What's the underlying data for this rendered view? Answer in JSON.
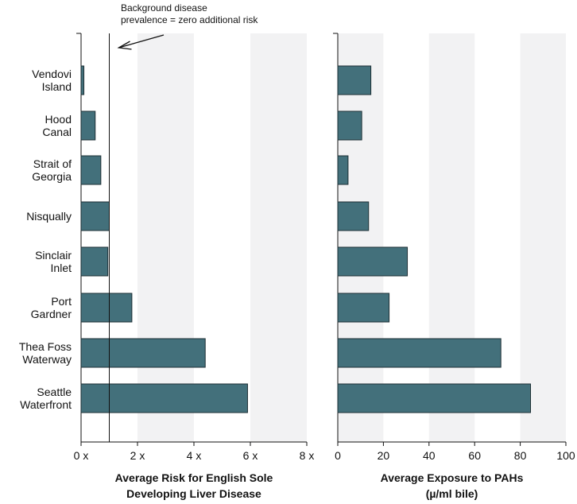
{
  "chart_data": [
    {
      "type": "bar",
      "orientation": "horizontal",
      "categories": [
        "Vendovi\nIsland",
        "Hood\nCanal",
        "Strait of\nGeorgia",
        "Nisqually",
        "Sinclair\nInlet",
        "Port\nGardner",
        "Thea Foss\nWaterway",
        "Seattle\nWaterfront"
      ],
      "values": [
        0.1,
        0.5,
        0.7,
        1.0,
        0.95,
        1.8,
        4.4,
        5.9
      ],
      "xlabel": "Average Risk for English Sole\nDeveloping Liver Disease",
      "ticks": [
        "0 x",
        "2 x",
        "4 x",
        "6 x",
        "8 x"
      ],
      "xlim": [
        0,
        8
      ],
      "reference_line": {
        "value": 1,
        "annotation": "Background disease\nprevalence = zero additional risk"
      },
      "shaded_bands": [
        [
          2,
          4
        ],
        [
          6,
          8
        ]
      ],
      "bar_color": "#43707b",
      "band_color": "#f2f2f3"
    },
    {
      "type": "bar",
      "orientation": "horizontal",
      "categories": [
        "Vendovi\nIsland",
        "Hood\nCanal",
        "Strait of\nGeorgia",
        "Nisqually",
        "Sinclair\nInlet",
        "Port\nGardner",
        "Thea Foss\nWaterway",
        "Seattle\nWaterfront"
      ],
      "values": [
        14.5,
        10.5,
        4.5,
        13.5,
        30.5,
        22.5,
        71.5,
        84.5
      ],
      "xlabel": "Average Exposure to PAHs\n(µ/ml bile)",
      "ticks": [
        "0",
        "20",
        "40",
        "60",
        "80",
        "100"
      ],
      "xlim": [
        0,
        100
      ],
      "shaded_bands": [
        [
          0,
          20
        ],
        [
          40,
          60
        ],
        [
          80,
          100
        ]
      ],
      "bar_color": "#43707b",
      "band_color": "#f2f2f3"
    }
  ]
}
